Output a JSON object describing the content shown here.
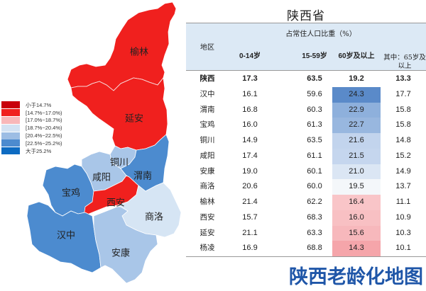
{
  "title": "陕西省",
  "watermark": "陕西老龄化地图",
  "legend": {
    "items": [
      {
        "label": "小于14.7%",
        "color": "#c8000b"
      },
      {
        "label": "[14.7%~17.0%)",
        "color": "#f0201e"
      },
      {
        "label": "[17.0%~18.7%)",
        "color": "#f8b7b9"
      },
      {
        "label": "[18.7%~20.4%)",
        "color": "#d3e2f3"
      },
      {
        "label": "[20.4%~22.5%)",
        "color": "#9dbde4"
      },
      {
        "label": "[22.5%~25.2%)",
        "color": "#4c8bcf"
      },
      {
        "label": "大于25.2%",
        "color": "#0d6bc2"
      }
    ]
  },
  "map": {
    "regions": [
      {
        "name": "榆林",
        "color": "#f0201e"
      },
      {
        "name": "延安",
        "color": "#f0201e"
      },
      {
        "name": "铜川",
        "color": "#a9c6e8"
      },
      {
        "name": "咸阳",
        "color": "#a9c6e8"
      },
      {
        "name": "渭南",
        "color": "#4c8bcf"
      },
      {
        "name": "宝鸡",
        "color": "#4c8bcf"
      },
      {
        "name": "西安",
        "color": "#f0201e"
      },
      {
        "name": "商洛",
        "color": "#d6e5f4"
      },
      {
        "name": "汉中",
        "color": "#4c8bcf"
      },
      {
        "name": "安康",
        "color": "#a9c6e8"
      }
    ]
  },
  "table": {
    "header": {
      "region": "地区",
      "group": "占常住人口比重（%）",
      "cols": [
        "0-14岁",
        "15-59岁",
        "60岁及以上",
        "其中：65岁及",
        "以上"
      ]
    },
    "rows": [
      {
        "region": "陕西",
        "c1": "17.3",
        "c2": "63.5",
        "c3": "19.2",
        "c4": "13.3",
        "bg": "#ffffff",
        "bold": true
      },
      {
        "region": "汉中",
        "c1": "16.1",
        "c2": "59.6",
        "c3": "24.3",
        "c4": "17.7",
        "bg": "#5a8ac9"
      },
      {
        "region": "渭南",
        "c1": "16.8",
        "c2": "60.3",
        "c3": "22.9",
        "c4": "15.8",
        "bg": "#8eb0dc"
      },
      {
        "region": "宝鸡",
        "c1": "16.0",
        "c2": "61.3",
        "c3": "22.7",
        "c4": "15.8",
        "bg": "#98b7df"
      },
      {
        "region": "铜川",
        "c1": "14.9",
        "c2": "63.5",
        "c3": "21.6",
        "c4": "14.8",
        "bg": "#c2d4ed"
      },
      {
        "region": "咸阳",
        "c1": "17.4",
        "c2": "61.1",
        "c3": "21.5",
        "c4": "15.2",
        "bg": "#c5d6ee"
      },
      {
        "region": "安康",
        "c1": "19.0",
        "c2": "60.1",
        "c3": "21.0",
        "c4": "14.9",
        "bg": "#dbe6f4"
      },
      {
        "region": "商洛",
        "c1": "20.6",
        "c2": "60.0",
        "c3": "19.5",
        "c4": "13.7",
        "bg": "#f4f7fa"
      },
      {
        "region": "榆林",
        "c1": "21.4",
        "c2": "62.2",
        "c3": "16.4",
        "c4": "11.1",
        "bg": "#f9c5c8"
      },
      {
        "region": "西安",
        "c1": "15.7",
        "c2": "68.3",
        "c3": "16.0",
        "c4": "10.9",
        "bg": "#f8c0c3"
      },
      {
        "region": "延安",
        "c1": "21.1",
        "c2": "63.3",
        "c3": "15.6",
        "c4": "10.3",
        "bg": "#f7b8bc"
      },
      {
        "region": "杨凌",
        "c1": "16.9",
        "c2": "68.8",
        "c3": "14.3",
        "c4": "10.1",
        "bg": "#f5a5aa"
      }
    ]
  },
  "chart_data": {
    "type": "table",
    "title": "陕西省",
    "subtitle": "占常住人口比重（%）",
    "columns": [
      "地区",
      "0-14岁",
      "15-59岁",
      "60岁及以上",
      "其中：65岁及以上"
    ],
    "rows": [
      [
        "陕西",
        17.3,
        63.5,
        19.2,
        13.3
      ],
      [
        "汉中",
        16.1,
        59.6,
        24.3,
        17.7
      ],
      [
        "渭南",
        16.8,
        60.3,
        22.9,
        15.8
      ],
      [
        "宝鸡",
        16.0,
        61.3,
        22.7,
        15.8
      ],
      [
        "铜川",
        14.9,
        63.5,
        21.6,
        14.8
      ],
      [
        "咸阳",
        17.4,
        61.1,
        21.5,
        15.2
      ],
      [
        "安康",
        19.0,
        60.1,
        21.0,
        14.9
      ],
      [
        "商洛",
        20.6,
        60.0,
        19.5,
        13.7
      ],
      [
        "榆林",
        21.4,
        62.2,
        16.4,
        11.1
      ],
      [
        "西安",
        15.7,
        68.3,
        16.0,
        10.9
      ],
      [
        "延安",
        21.1,
        63.3,
        15.6,
        10.3
      ],
      [
        "杨凌",
        16.9,
        68.8,
        14.3,
        10.1
      ]
    ],
    "map_legend": [
      "小于14.7%",
      "[14.7%~17.0%)",
      "[17.0%~18.7%)",
      "[18.7%~20.4%)",
      "[20.4%~22.5%)",
      "[22.5%~25.2%)",
      "大于25.2%"
    ],
    "map_values_60plus": {
      "榆林": 16.4,
      "延安": 15.6,
      "西安": 16.0,
      "铜川": 21.6,
      "咸阳": 21.5,
      "渭南": 22.9,
      "宝鸡": 22.7,
      "汉中": 24.3,
      "安康": 21.0,
      "商洛": 19.5
    }
  }
}
